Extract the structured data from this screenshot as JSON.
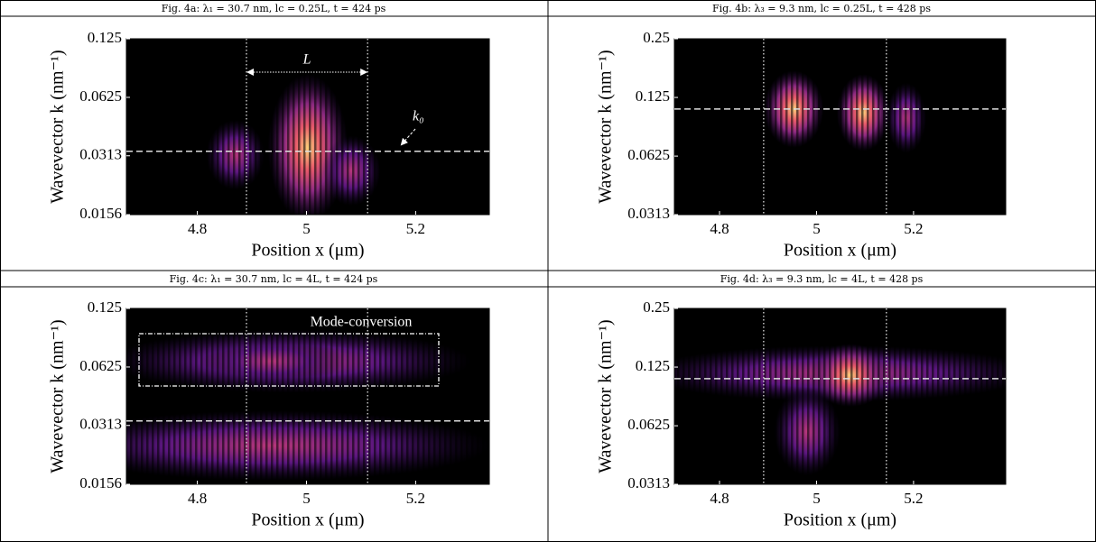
{
  "chart_data": [
    {
      "type": "heatmap",
      "title": "Fig. 4a: λ₁ = 30.7 nm, lc = 0.25L, t = 424 ps",
      "xlabel": "Position x (μm)",
      "ylabel": "Wavevector k (nm⁻¹)",
      "xlim": [
        4.67,
        5.335
      ],
      "xticks": [
        4.8,
        5,
        5.2
      ],
      "ylim": [
        0.0156,
        0.125
      ],
      "yticks": [
        0.0156,
        0.0313,
        0.0625,
        0.125
      ],
      "yscale": "log",
      "vlines": [
        4.89,
        5.112
      ],
      "hline": 0.033,
      "annotations": [
        "L",
        "k₀"
      ]
    },
    {
      "type": "heatmap",
      "title": "Fig. 4b: λ₃ = 9.3 nm, lc = 0.25L, t = 428 ps",
      "xlabel": "Position x (μm)",
      "ylabel": "Wavevector k (nm⁻¹)",
      "xlim": [
        4.707,
        5.39
      ],
      "xticks": [
        4.8,
        5,
        5.2
      ],
      "ylim": [
        0.0313,
        0.25
      ],
      "yticks": [
        0.0313,
        0.0625,
        0.125,
        0.25
      ],
      "yscale": "log",
      "vlines": [
        4.891,
        5.144
      ],
      "hline": 0.109
    },
    {
      "type": "heatmap",
      "title": "Fig. 4c: λ₁ = 30.7 nm, lc = 4L, t = 424 ps",
      "xlabel": "Position x (μm)",
      "ylabel": "Wavevector k (nm⁻¹)",
      "xlim": [
        4.67,
        5.335
      ],
      "xticks": [
        4.8,
        5,
        5.2
      ],
      "ylim": [
        0.0156,
        0.125
      ],
      "yticks": [
        0.0156,
        0.0313,
        0.0625,
        0.125
      ],
      "yscale": "log",
      "vlines": [
        4.89,
        5.112
      ],
      "hline": 0.033,
      "annotations": [
        "Mode-conversion"
      ]
    },
    {
      "type": "heatmap",
      "title": "Fig. 4d: λ₃ = 9.3 nm, lc = 4L, t = 428 ps",
      "xlabel": "Position x (μm)",
      "ylabel": "Wavevector k (nm⁻¹)",
      "xlim": [
        4.707,
        5.39
      ],
      "xticks": [
        4.8,
        5,
        5.2
      ],
      "ylim": [
        0.0313,
        0.25
      ],
      "yticks": [
        0.0313,
        0.0625,
        0.125,
        0.25
      ],
      "yscale": "log",
      "vlines": [
        4.891,
        5.144
      ],
      "hline": 0.109
    }
  ]
}
